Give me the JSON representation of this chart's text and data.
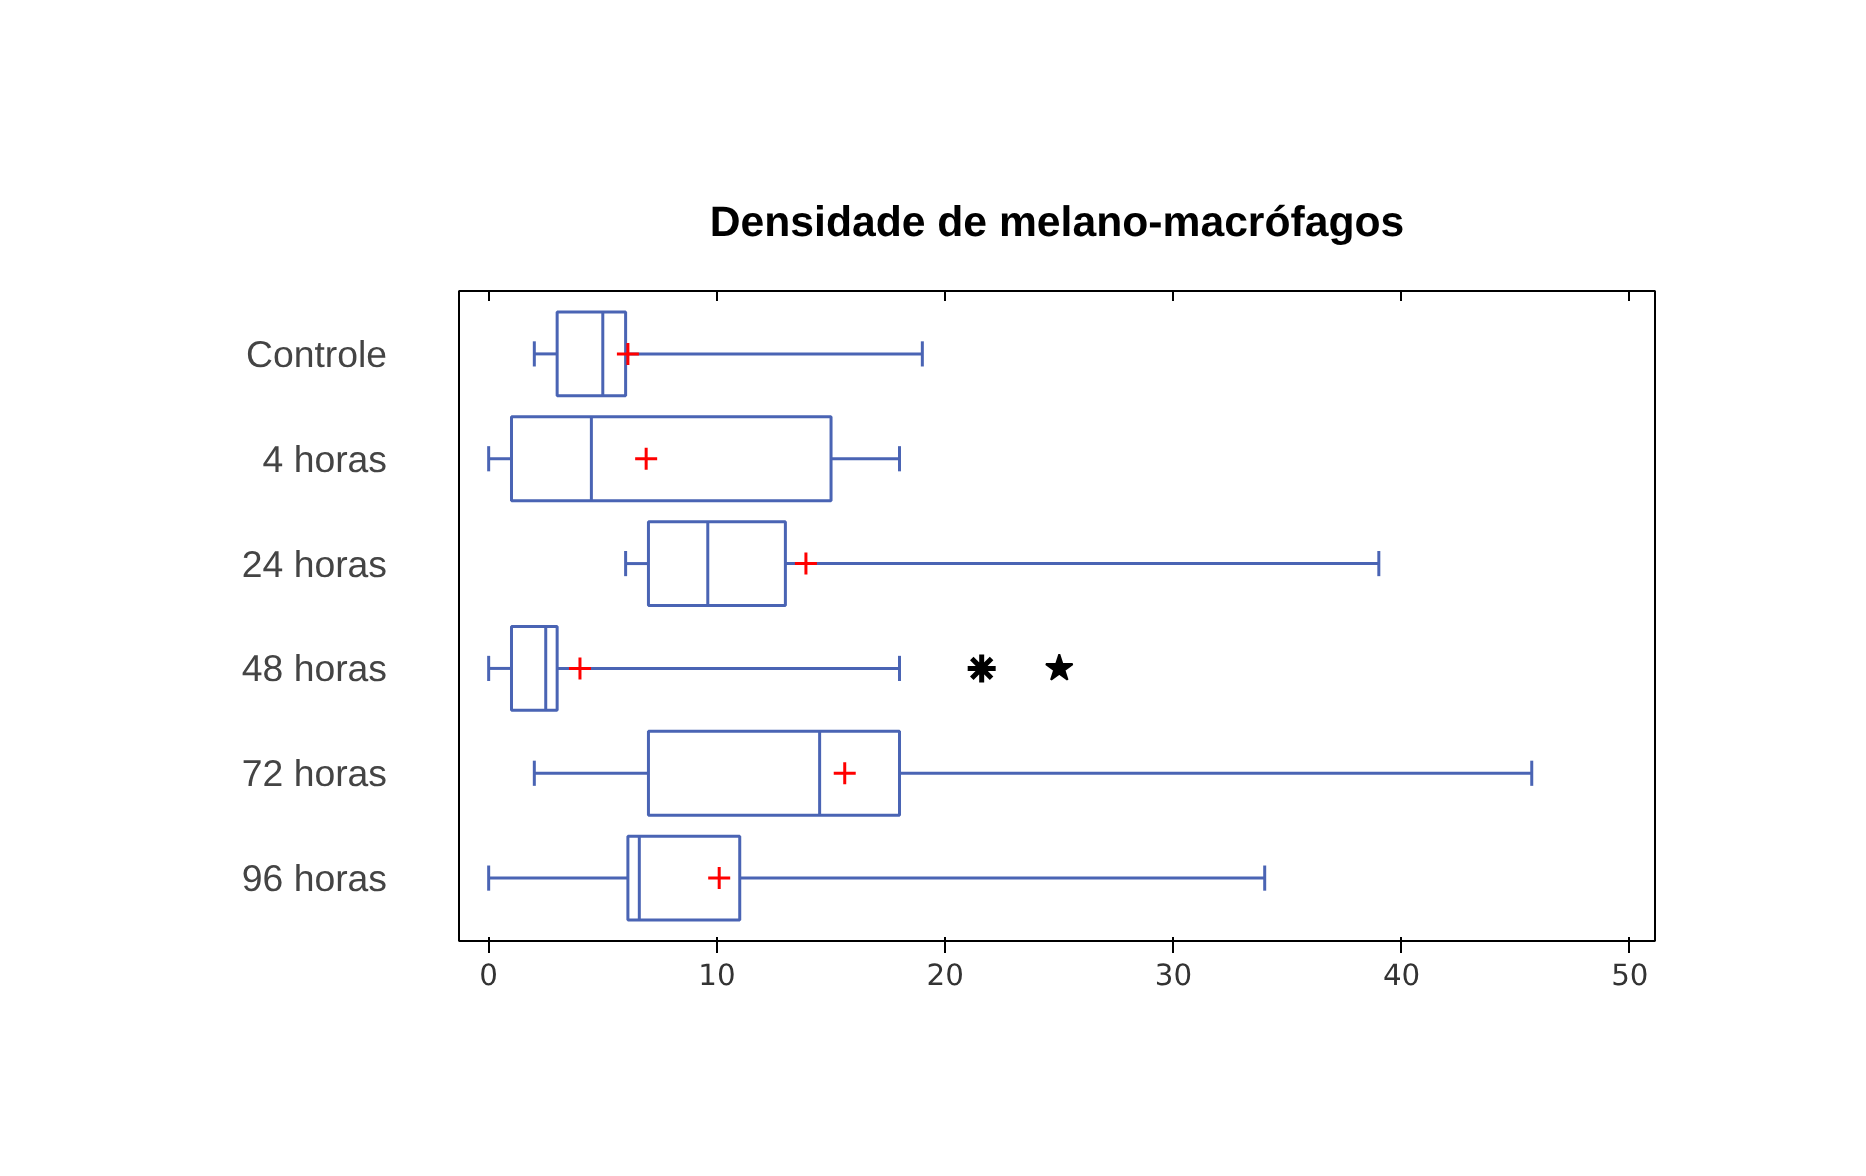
{
  "chart_data": {
    "type": "box",
    "title": "Densidade de melano-macrófagos",
    "orientation": "horizontal",
    "categories": [
      "Controle",
      "4 horas",
      "24 horas",
      "48 horas",
      "72 horas",
      "96 horas"
    ],
    "boxes": [
      {
        "low": 2,
        "q1": 3,
        "median": 5,
        "q3": 6,
        "high": 19,
        "mean": 6.1
      },
      {
        "low": 0,
        "q1": 1,
        "median": 4.5,
        "q3": 15,
        "high": 18,
        "mean": 6.9
      },
      {
        "low": 6,
        "q1": 7,
        "median": 9.6,
        "q3": 13,
        "high": 39,
        "mean": 13.9
      },
      {
        "low": 0,
        "q1": 1,
        "median": 2.5,
        "q3": 3,
        "high": 18,
        "mean": 4,
        "outliers": [
          21.6,
          25
        ]
      },
      {
        "low": 2,
        "q1": 7,
        "median": 14.5,
        "q3": 18,
        "high": 45.7,
        "mean": 15.6
      },
      {
        "low": 0,
        "q1": 6.1,
        "median": 6.6,
        "q3": 11,
        "high": 34,
        "mean": 10.1
      }
    ],
    "color": "#4a64b4",
    "xlim": [
      -1.3,
      51.1
    ],
    "xticks": [
      0,
      10,
      20,
      30,
      40,
      50
    ],
    "grid": false
  }
}
